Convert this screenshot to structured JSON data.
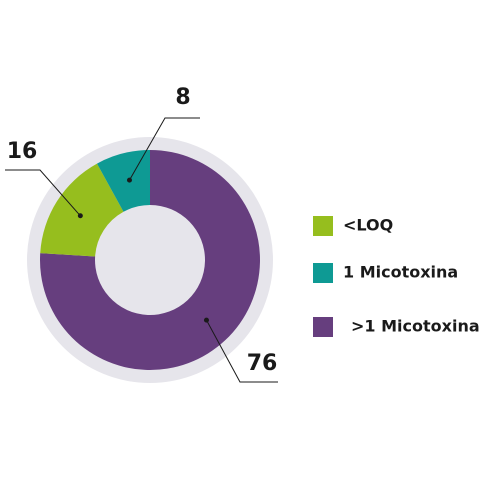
{
  "chart_data": {
    "type": "donut",
    "categories": [
      "<LOQ",
      "1 Micotoxina",
      ">1 Micotoxina"
    ],
    "values": [
      16,
      8,
      76
    ],
    "colors": [
      "#96be1e",
      "#0e9a94",
      "#663e7e"
    ],
    "legend": "right"
  }
}
